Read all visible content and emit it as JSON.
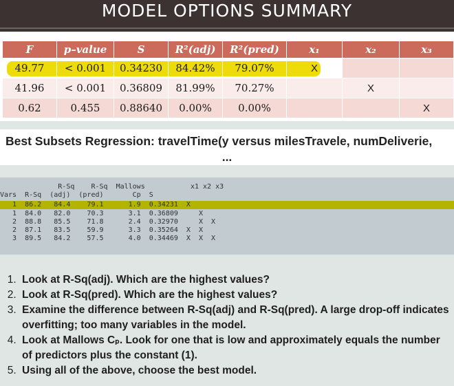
{
  "title": "MODEL OPTIONS SUMMARY",
  "summary_table": {
    "headers": [
      "F",
      "p–value",
      "S",
      "R²(adj)",
      "R²(pred)",
      "x₁",
      "x₂",
      "x₃"
    ],
    "rows": [
      [
        "49.77",
        "< 0.001",
        "0.34230",
        "84.42%",
        "79.07%",
        "X",
        "",
        ""
      ],
      [
        "41.96",
        "< 0.001",
        "0.36809",
        "81.99%",
        "70.27%",
        "",
        "X",
        ""
      ],
      [
        "0.62",
        "0.455",
        "0.88640",
        "0.00%",
        "0.00%",
        "",
        "",
        "X"
      ]
    ],
    "highlight_color": "#eddc0a"
  },
  "heading": {
    "line1": "Best Subsets Regression: travelTime(y versus milesTravele, numDeliverie,",
    "line2": "..."
  },
  "minitab_output": {
    "lines": [
      "              R-Sq    R-Sq  Mallows           x1 x2 x3",
      "Vars  R-Sq  (adj)  (pred)       Cp  S",
      "   1  86.2   84.4    79.1      1.9  0.34231  X",
      "   1  84.0   82.0    70.3      3.1  0.36809     X",
      "   2  88.8   85.5    71.8      2.4  0.32970     X  X",
      "   2  87.1   83.5    59.9      3.3  0.35264  X  X",
      "   3  89.5   84.2    57.5      4.0  0.34469  X  X  X"
    ],
    "highlight_color": "#b3b300"
  },
  "steps": [
    "Look at R-Sq(adj). Which are the highest values?",
    "Look at R-Sq(pred). Which are the highest values?",
    "Examine the difference between R-Sq(adj) and R-Sq(pred). A large drop-off indicates overfitting; too many variables in the model.",
    "Look at Mallows Cₚ. Look for one that is low and approximately equals the number of predictors plus the constant (1).",
    "Using all of the above, choose the best model."
  ]
}
